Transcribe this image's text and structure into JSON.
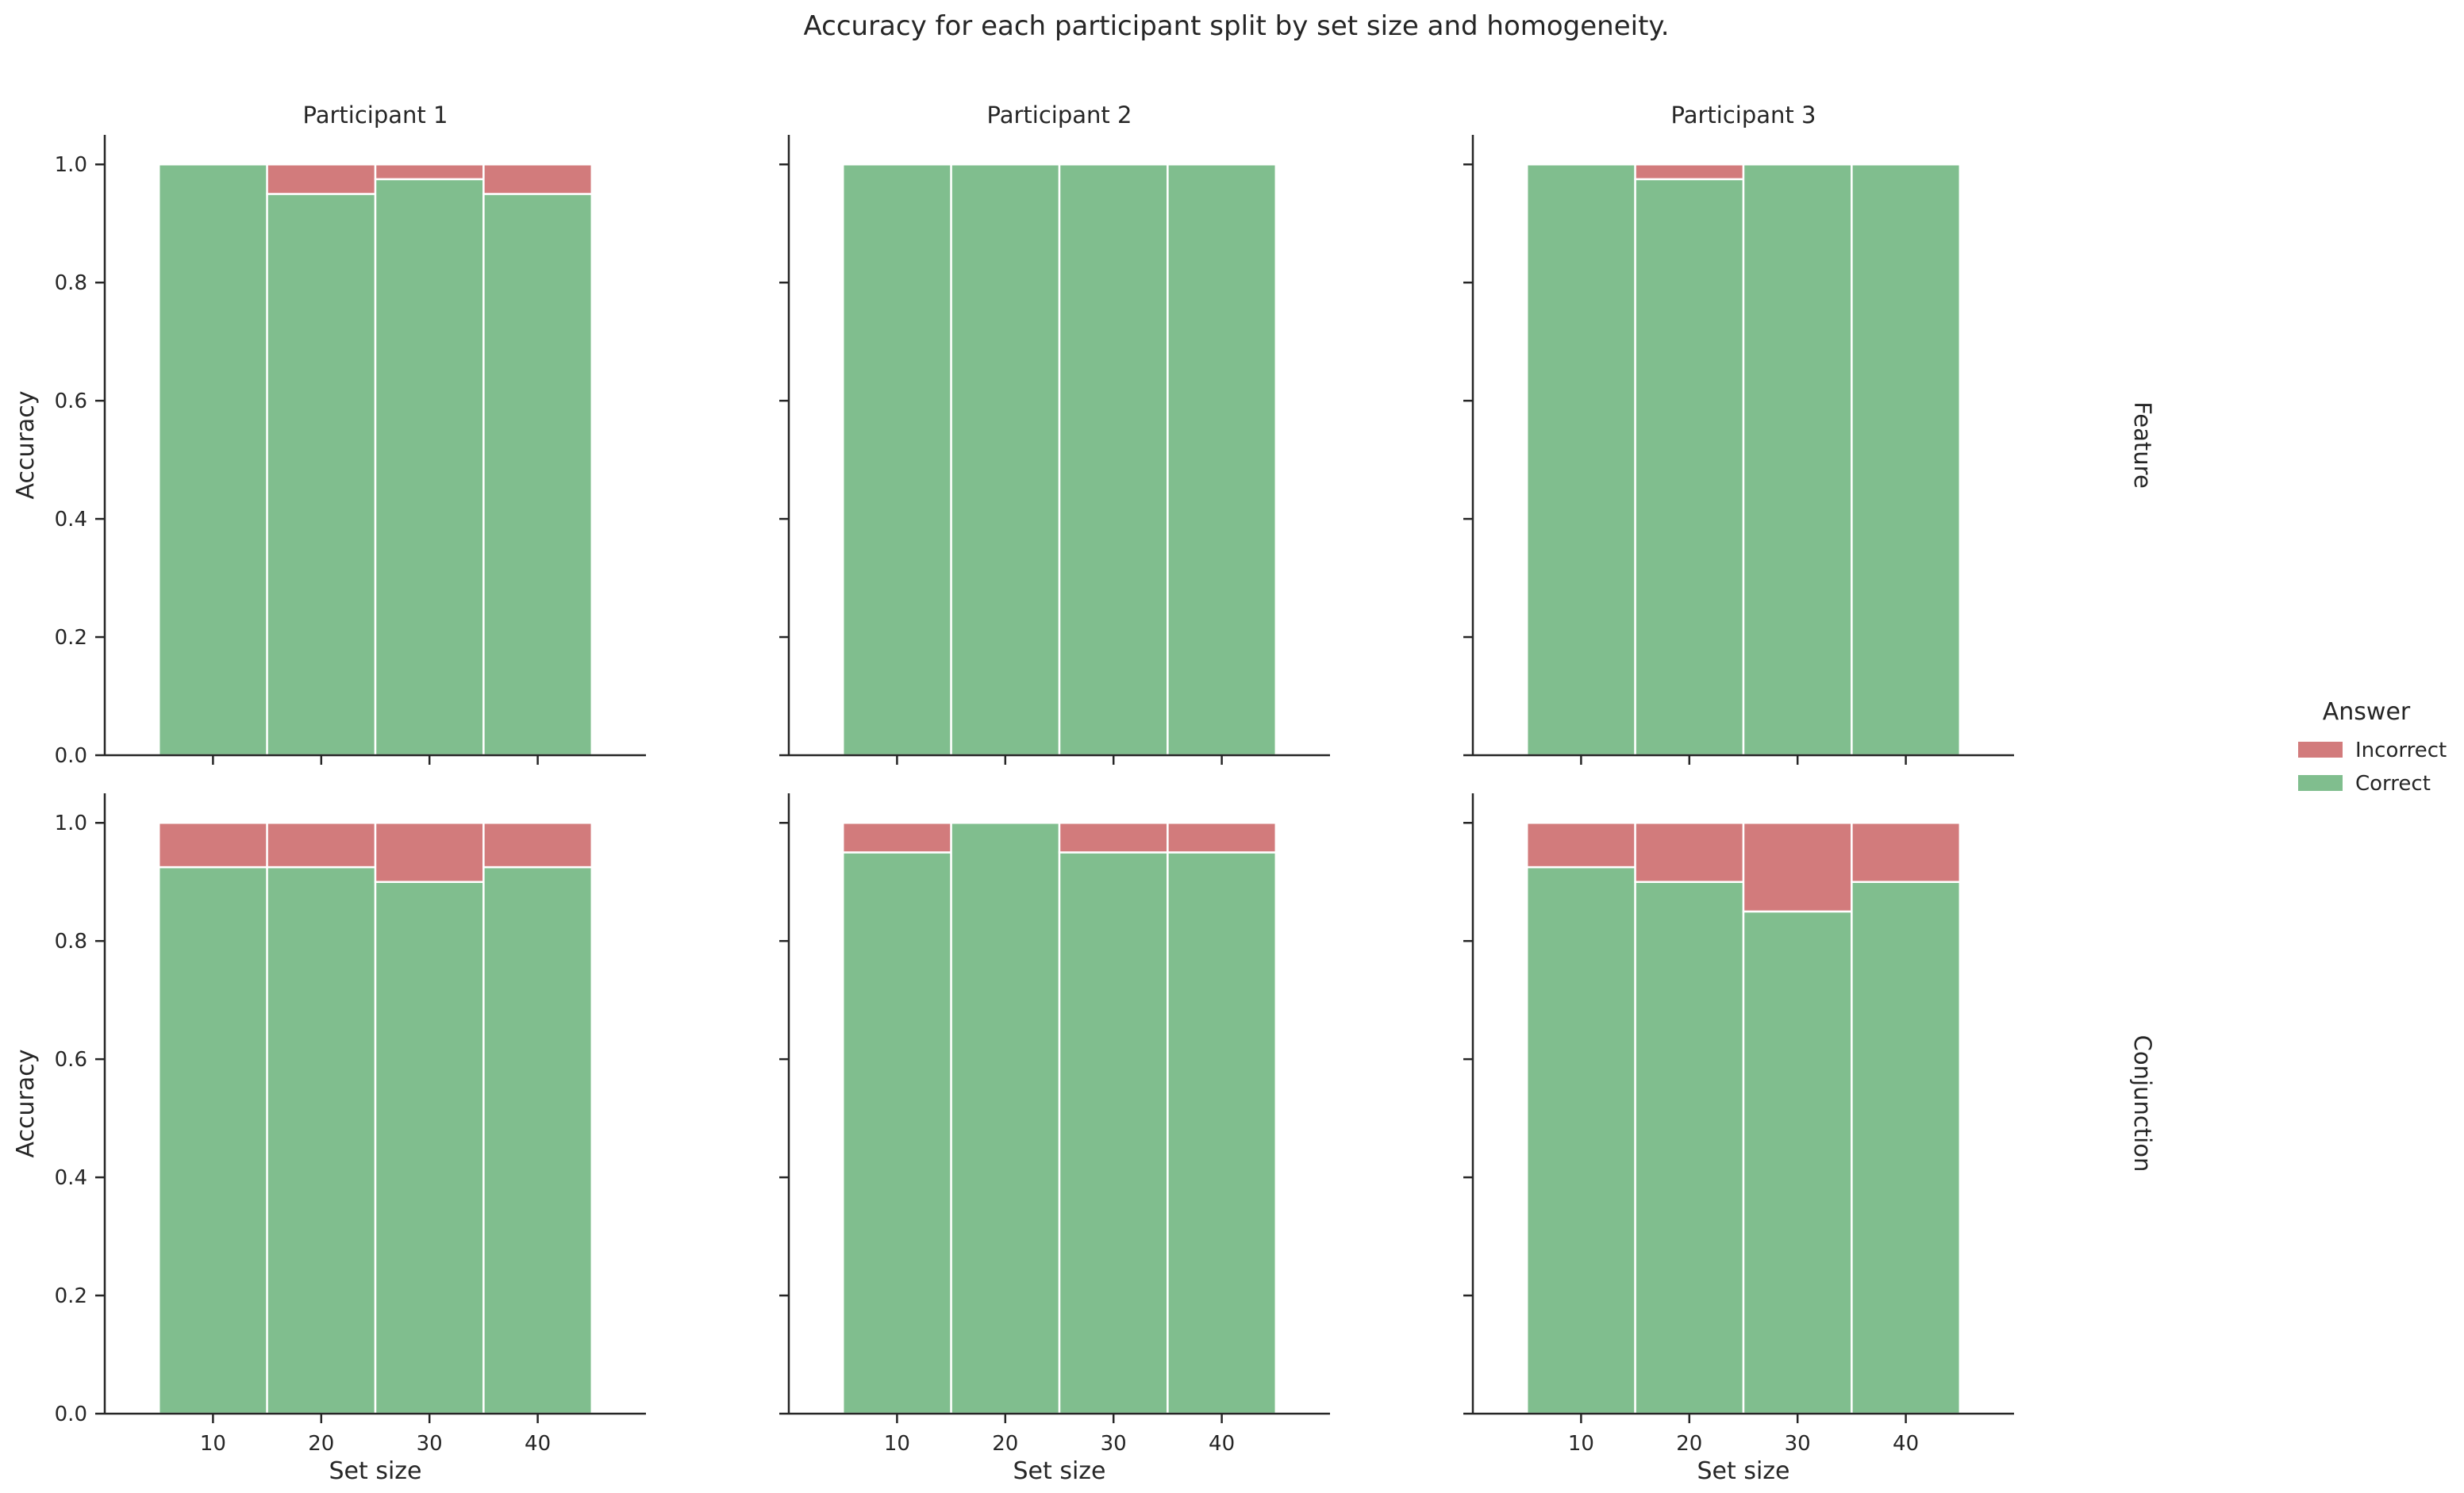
{
  "title": "Accuracy for each participant split by set size and homogeneity.",
  "legend": {
    "title": "Answer",
    "placement": "right",
    "entries": [
      {
        "label": "Incorrect",
        "color": "#d27b7c"
      },
      {
        "label": "Correct",
        "color": "#80be8e"
      }
    ]
  },
  "chart_data": {
    "type": "bar",
    "stacked": true,
    "columns": [
      "Participant 1",
      "Participant 2",
      "Participant 3"
    ],
    "rows": [
      "Feature",
      "Conjunction"
    ],
    "xlabel": "Set size",
    "ylabel": "Accuracy",
    "categories": [
      10,
      20,
      30,
      40
    ],
    "xticks": [
      "10",
      "20",
      "30",
      "40"
    ],
    "yticks": [
      "0.0",
      "0.2",
      "0.4",
      "0.6",
      "0.8",
      "1.0"
    ],
    "ylim": [
      0,
      1.05
    ],
    "grid": false,
    "panels": [
      {
        "row": "Feature",
        "column": "Participant 1",
        "series": [
          {
            "name": "Correct",
            "values": [
              1.0,
              0.95,
              0.975,
              0.95
            ]
          },
          {
            "name": "Incorrect",
            "values": [
              0.0,
              0.05,
              0.025,
              0.05
            ]
          }
        ]
      },
      {
        "row": "Feature",
        "column": "Participant 2",
        "series": [
          {
            "name": "Correct",
            "values": [
              1.0,
              1.0,
              1.0,
              1.0
            ]
          },
          {
            "name": "Incorrect",
            "values": [
              0.0,
              0.0,
              0.0,
              0.0
            ]
          }
        ]
      },
      {
        "row": "Feature",
        "column": "Participant 3",
        "series": [
          {
            "name": "Correct",
            "values": [
              1.0,
              0.975,
              1.0,
              1.0
            ]
          },
          {
            "name": "Incorrect",
            "values": [
              0.0,
              0.025,
              0.0,
              0.0
            ]
          }
        ]
      },
      {
        "row": "Conjunction",
        "column": "Participant 1",
        "series": [
          {
            "name": "Correct",
            "values": [
              0.925,
              0.925,
              0.9,
              0.925
            ]
          },
          {
            "name": "Incorrect",
            "values": [
              0.075,
              0.075,
              0.1,
              0.075
            ]
          }
        ]
      },
      {
        "row": "Conjunction",
        "column": "Participant 2",
        "series": [
          {
            "name": "Correct",
            "values": [
              0.95,
              1.0,
              0.95,
              0.95
            ]
          },
          {
            "name": "Incorrect",
            "values": [
              0.05,
              0.0,
              0.05,
              0.05
            ]
          }
        ]
      },
      {
        "row": "Conjunction",
        "column": "Participant 3",
        "series": [
          {
            "name": "Correct",
            "values": [
              0.925,
              0.9,
              0.85,
              0.9
            ]
          },
          {
            "name": "Incorrect",
            "values": [
              0.075,
              0.1,
              0.15,
              0.1
            ]
          }
        ]
      }
    ]
  }
}
